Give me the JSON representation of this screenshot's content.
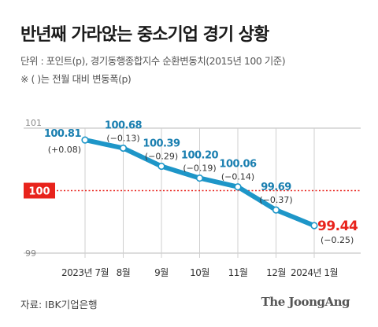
{
  "title": "반년째 가라앉는 중소기업 경기 상황",
  "notes": {
    "unit": "단위 : 포인트(p), 경기동행종합지수 순환변동치(2015년 100 기준)",
    "paren": "※ ( )는 전월 대비 변동폭(p)"
  },
  "source": "자료: IBK기업은행",
  "brand": "The JoongAng",
  "colors": {
    "line": "#1e96c8",
    "value_text": "#1a7fb0",
    "highlight": "#e8231c",
    "reference": "#e8231c",
    "grid": "#cfcfcf"
  },
  "chart_data": {
    "type": "line",
    "categories": [
      "2023년 7월",
      "8월",
      "9월",
      "10월",
      "11월",
      "12월",
      "2024년 1월"
    ],
    "values": [
      100.81,
      100.68,
      100.39,
      100.2,
      100.06,
      99.69,
      99.44
    ],
    "value_labels": [
      "100.81",
      "100.68",
      "100.39",
      "100.20",
      "100.06",
      "99.69",
      "99.44"
    ],
    "changes": [
      "(+0.08)",
      "(−0.13)",
      "(−0.29)",
      "(−0.19)",
      "(−0.14)",
      "(−0.37)",
      "(−0.25)"
    ],
    "ylim": [
      99,
      101
    ],
    "yticks": [
      "101",
      "99"
    ],
    "reference_line": {
      "value": 100,
      "label": "100"
    },
    "grid": "vertical",
    "highlight_last": true
  }
}
